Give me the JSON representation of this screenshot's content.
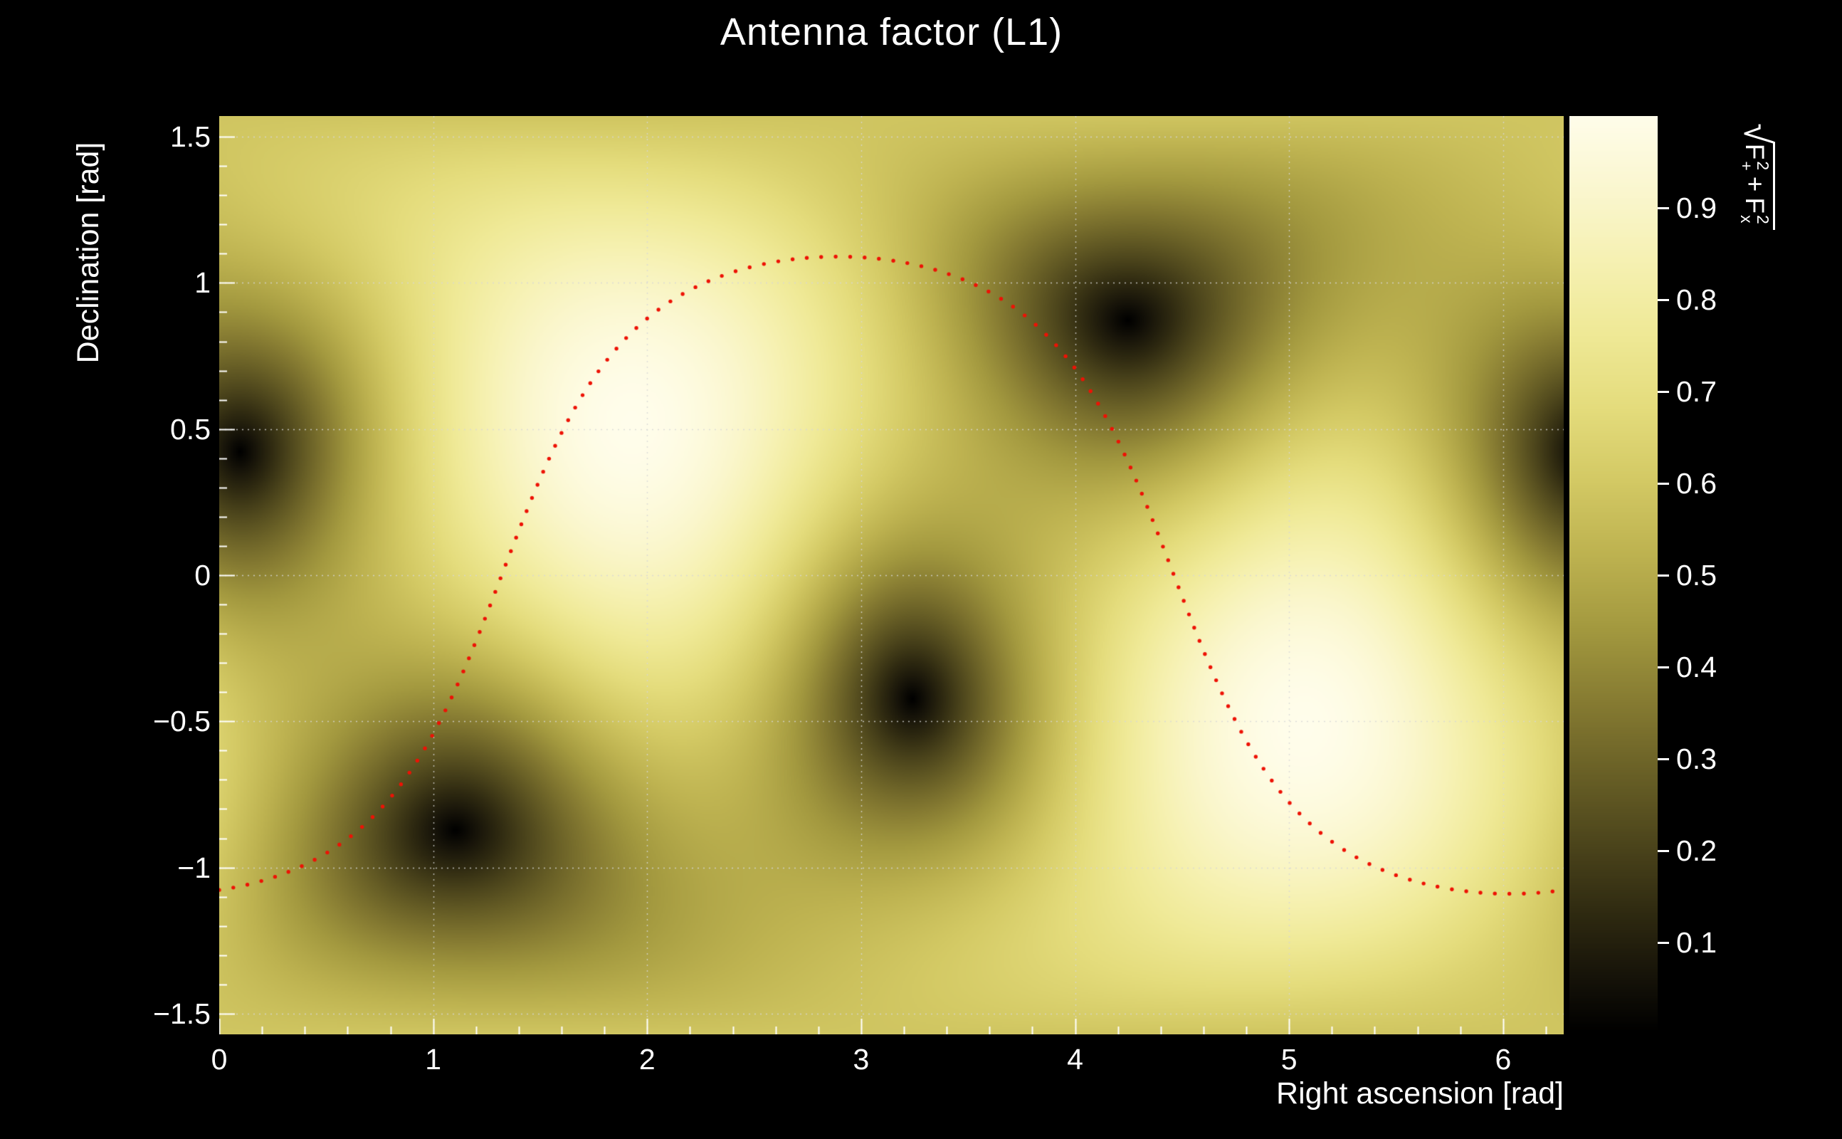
{
  "chart_data": {
    "type": "heatmap",
    "title": "Antenna factor (L1)",
    "xlabel": "Right ascension [rad]",
    "ylabel": "Declination [rad]",
    "x_range": [
      0,
      6.2832
    ],
    "y_range": [
      -1.5708,
      1.5708
    ],
    "z_range": [
      0,
      1
    ],
    "grid": true,
    "x_ticks": {
      "values": [
        0,
        1,
        2,
        3,
        4,
        5,
        6
      ],
      "labels": [
        "0",
        "1",
        "2",
        "3",
        "4",
        "5",
        "6"
      ],
      "minor_step": 0.2
    },
    "y_ticks": {
      "values": [
        -1.5,
        -1,
        -0.5,
        0,
        0.5,
        1,
        1.5
      ],
      "labels": [
        "−1.5",
        "−1",
        "−0.5",
        "0",
        "0.5",
        "1",
        "1.5"
      ],
      "minor_step": 0.1
    },
    "field": {
      "model": "sqrt(F_plus^2 + F_cross^2) interferometer antenna pattern magnitude over the sky",
      "nulls": [
        {
          "ra": 0.1,
          "dec": 0.42
        },
        {
          "ra": 1.1,
          "dec": -0.87
        },
        {
          "ra": 3.24,
          "dec": -0.42
        },
        {
          "ra": 4.24,
          "dec": 0.87
        }
      ],
      "maxima": [
        {
          "ra": 1.93,
          "dec": 0.52,
          "value": 1.0
        },
        {
          "ra": 5.07,
          "dec": -0.52,
          "value": 1.0
        }
      ]
    },
    "colorbar": {
      "label": {
        "sqrt_symbol": "√",
        "f_plus": {
          "base": "F",
          "sup": "2",
          "sub": "+"
        },
        "plus": "+",
        "f_cross": {
          "base": "F",
          "sup": "2",
          "sub": "x"
        }
      },
      "range": [
        0,
        1
      ],
      "ticks": {
        "values": [
          0.1,
          0.2,
          0.3,
          0.4,
          0.5,
          0.6,
          0.7,
          0.8,
          0.9
        ],
        "labels": [
          "0.1",
          "0.2",
          "0.3",
          "0.4",
          "0.5",
          "0.6",
          "0.7",
          "0.8",
          "0.9"
        ]
      },
      "stops": [
        [
          0.0,
          "#000000"
        ],
        [
          0.06,
          "#161309"
        ],
        [
          0.13,
          "#2f2a11"
        ],
        [
          0.2,
          "#4a431b"
        ],
        [
          0.28,
          "#685f26"
        ],
        [
          0.36,
          "#867b32"
        ],
        [
          0.44,
          "#a3993f"
        ],
        [
          0.52,
          "#bdb250"
        ],
        [
          0.6,
          "#d3c964"
        ],
        [
          0.68,
          "#e4dc7c"
        ],
        [
          0.76,
          "#efe996"
        ],
        [
          0.84,
          "#f6f1b2"
        ],
        [
          0.91,
          "#faf6cc"
        ],
        [
          0.96,
          "#fdfadd"
        ],
        [
          1.0,
          "#fffdeb"
        ]
      ]
    },
    "overlay_curve": {
      "style": "dotted",
      "color": "#ed1205",
      "description": "great-circle sky track: dec = asin(sin(i) sin(t)), ra = node + atan2(cos(i) sin(t), cos(t))",
      "inclination": 1.09,
      "node_ra": 1.32,
      "dot_spacing_px": 20,
      "dot_radius_px": 2.7
    },
    "grid_color": "rgba(215,215,215,0.85)",
    "background": "#000000",
    "text_color": "#ffffff"
  }
}
